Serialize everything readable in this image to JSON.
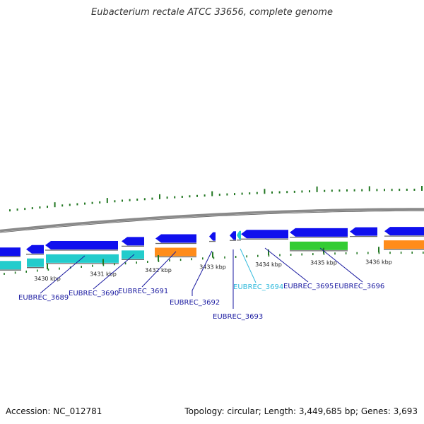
{
  "title": "Eubacterium rectale ATCC 33656, complete genome",
  "footer": {
    "accession": "Accession: NC_012781",
    "summary": "Topology: circular; Length: 3,449,685 bp; Genes: 3,693"
  },
  "colors": {
    "backbone": "#8a8a8a",
    "cds": "#1010ee",
    "rrna_teal": "#22cccc",
    "orange": "#ff8c1a",
    "green": "#33cc33",
    "gc_tick": "#227722",
    "label": "#1a1aa0",
    "label_highlight": "#33bbdd"
  },
  "ticks": [
    "3430 kbp",
    "3431 kbp",
    "3432 kbp",
    "3433 kbp",
    "3434 kbp",
    "3435 kbp",
    "3436 kbp"
  ],
  "genes": [
    {
      "label": "EUBREC_3689"
    },
    {
      "label": "EUBREC_3690"
    },
    {
      "label": "EUBREC_3691"
    },
    {
      "label": "EUBREC_3692"
    },
    {
      "label": "EUBREC_3693"
    },
    {
      "label": "EUBREC_3694",
      "highlight": true
    },
    {
      "label": "EUBREC_3695"
    },
    {
      "label": "EUBREC_3696"
    }
  ]
}
